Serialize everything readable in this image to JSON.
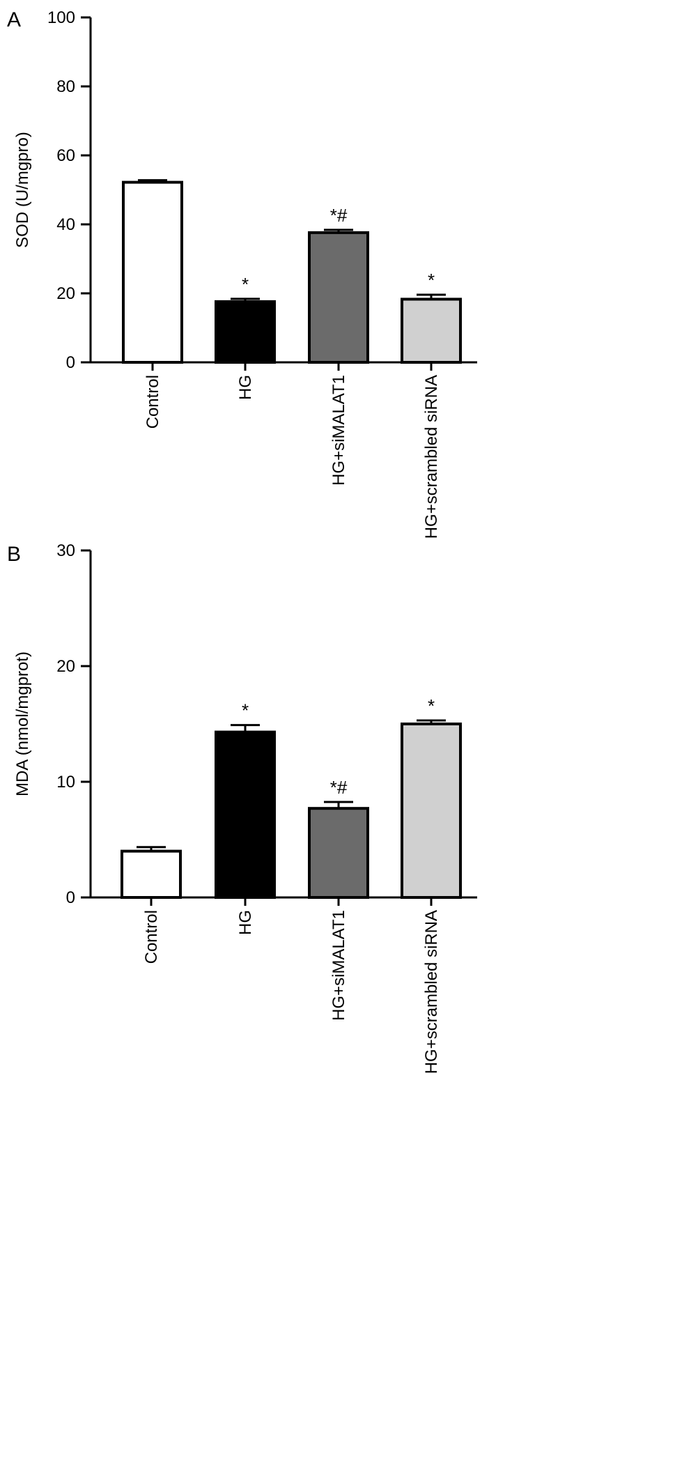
{
  "chart_data": [
    {
      "type": "bar",
      "panel": "A",
      "ylabel": "SOD (U/mgpro)",
      "xlabel": "",
      "ylim": [
        0,
        100
      ],
      "yticks": [
        0,
        20,
        40,
        60,
        80,
        100
      ],
      "categories": [
        "Control",
        "HG",
        "HG+siMALAT1",
        "HG+scrambled siRNA"
      ],
      "values": [
        52.2,
        17.6,
        37.6,
        18.3
      ],
      "errors": [
        0.6,
        0.8,
        0.8,
        1.3
      ],
      "annotations": [
        "",
        "*",
        "*#",
        "*"
      ],
      "colors": [
        "#ffffff",
        "#000000",
        "#6b6b6b",
        "#d0d0d0"
      ]
    },
    {
      "type": "bar",
      "panel": "B",
      "ylabel": "MDA (nmol/mgprot)",
      "xlabel": "",
      "ylim": [
        0,
        30
      ],
      "yticks": [
        0,
        10,
        20,
        30
      ],
      "categories": [
        "Control",
        "HG",
        "HG+siMALAT1",
        "HG+scrambled siRNA"
      ],
      "values": [
        4.0,
        14.3,
        7.7,
        15.0
      ],
      "errors": [
        0.35,
        0.6,
        0.55,
        0.3
      ],
      "annotations": [
        "",
        "*",
        "*#",
        "*"
      ],
      "colors": [
        "#ffffff",
        "#000000",
        "#6b6b6b",
        "#d0d0d0"
      ]
    }
  ]
}
